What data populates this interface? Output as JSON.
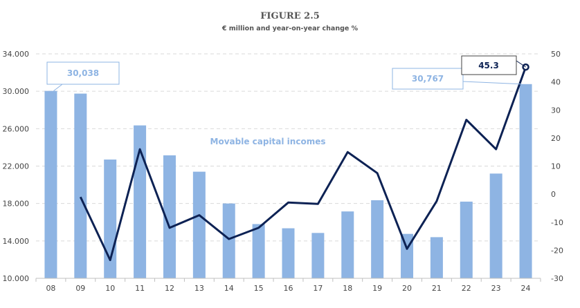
{
  "title": "FIGURE 2.5",
  "subtitle": "€ million and year-on-year change %",
  "chart_data": {
    "type": "bar",
    "categories": [
      "08",
      "09",
      "10",
      "11",
      "12",
      "13",
      "14",
      "15",
      "16",
      "17",
      "18",
      "19",
      "20",
      "21",
      "22",
      "23",
      "24"
    ],
    "series": [
      {
        "kind": "bar",
        "axis": "left",
        "values": [
          30038,
          29750,
          22700,
          26350,
          23150,
          21400,
          18000,
          15800,
          15350,
          14850,
          17150,
          18350,
          14750,
          14400,
          18200,
          21200,
          30767
        ]
      },
      {
        "kind": "line",
        "axis": "right",
        "values": [
          null,
          -1,
          -23.5,
          16,
          -12,
          -7.5,
          -16,
          -12,
          -3,
          -3.5,
          15,
          7.5,
          -19.5,
          -2.5,
          26.5,
          16,
          45.3
        ]
      }
    ],
    "annotation": "Movable capital incomes",
    "callouts": [
      {
        "index": 0,
        "label": "30,038"
      },
      {
        "index": 16,
        "label": "30,767"
      },
      {
        "index": 16,
        "label": "45.3"
      }
    ],
    "y_left": {
      "min": 10000,
      "max": 34000,
      "ticks": [
        "10.000",
        "14.000",
        "18.000",
        "22.000",
        "26.000",
        "30.000",
        "34.000"
      ]
    },
    "y_right": {
      "min": -30,
      "max": 50,
      "ticks": [
        "-30",
        "-20",
        "-10",
        "0",
        "10",
        "20",
        "30",
        "40",
        "50"
      ]
    },
    "grid": true,
    "colors": {
      "bar": "#8eb4e3",
      "line": "#0d2254",
      "callout_text": "#8eb4e3",
      "grid": "#d9d9d9"
    }
  }
}
